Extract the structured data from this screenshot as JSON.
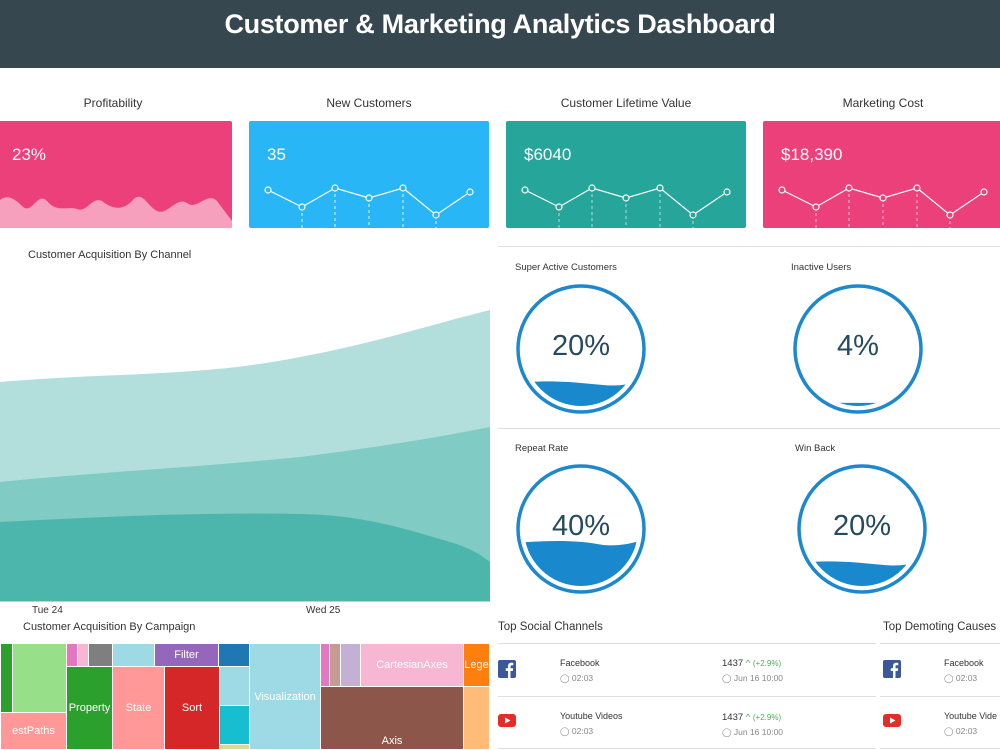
{
  "header": {
    "title": "Customer & Marketing Analytics Dashboard"
  },
  "kpis": [
    {
      "title": "Profitability",
      "value": "23%",
      "color": "#ec407a"
    },
    {
      "title": "New Customers",
      "value": "35",
      "color": "#29b6f6"
    },
    {
      "title": "Customer Lifetime Value",
      "value": "$6040",
      "color": "#26a69a"
    },
    {
      "title": "Marketing Cost",
      "value": "$18,390",
      "color": "#ec407a"
    }
  ],
  "acquisition": {
    "title": "Customer Acquisition By Channel",
    "x_labels": [
      "Tue 24",
      "Wed 25"
    ],
    "colors": [
      "#b2dfdb",
      "#80cbc4",
      "#4db6ac"
    ]
  },
  "gauges": [
    {
      "label": "Super Active Customers",
      "value": "20%",
      "fill": 0.2
    },
    {
      "label": "Inactive Users",
      "value": "4%",
      "fill": 0.04
    },
    {
      "label": "Repeat Rate",
      "value": "40%",
      "fill": 0.4
    },
    {
      "label": "Win Back",
      "value": "20%",
      "fill": 0.2
    }
  ],
  "campaign": {
    "title": "Customer Acquisition By Campaign",
    "labels": [
      "Filter",
      "Property",
      "State",
      "Sort",
      "estPaths",
      "Visualization",
      "CartesianAxes",
      "Axis",
      "Lege"
    ]
  },
  "social": {
    "title": "Top Social Channels",
    "rows": [
      {
        "name": "Facebook",
        "time": "02:03",
        "count": "1437",
        "change": "(+2.9%)",
        "date": "Jun 16 10:00"
      },
      {
        "name": "Youtube Videos",
        "time": "02:03",
        "count": "1437",
        "change": "(+2.9%)",
        "date": "Jun 16 10:00"
      }
    ]
  },
  "demoting": {
    "title": "Top Demoting Causes",
    "rows": [
      {
        "name": "Facebook",
        "time": "02:03"
      },
      {
        "name": "Youtube Vide",
        "time": "02:03"
      }
    ]
  }
}
